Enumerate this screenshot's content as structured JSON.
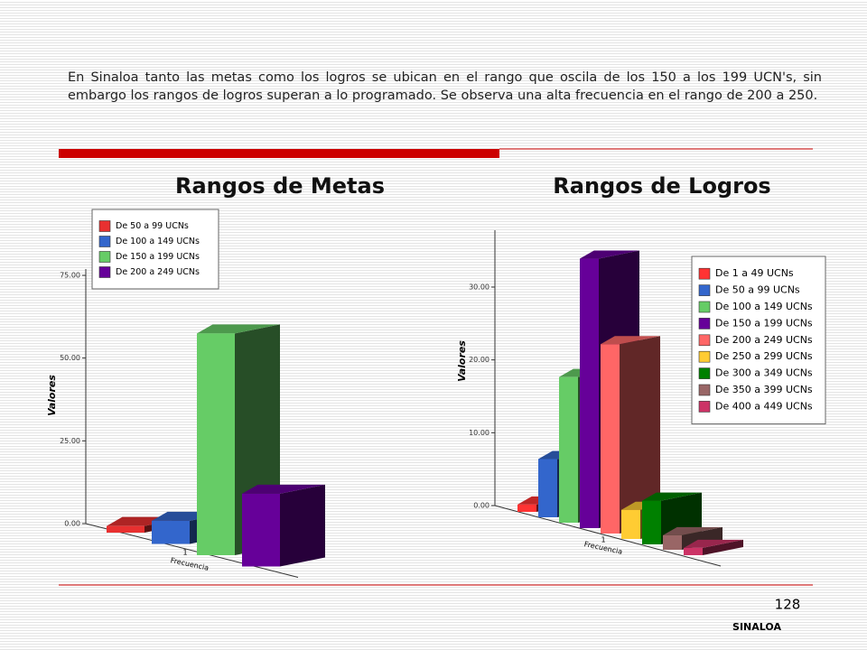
{
  "text": "En Sinaloa tanto las metas como los logros se ubican en el rango que oscila de los 150 a los 199 UCN's, sin embargo los rangos de logros superan a lo programado. Se observa una alta frecuencia en el rango de 200 a 250.",
  "page_number": "128",
  "footer": "SINALOA",
  "chart_data": [
    {
      "type": "bar",
      "title": "Rangos de Metas",
      "ylabel": "Valores",
      "xlabel": "Frecuencia",
      "categories": [
        "1"
      ],
      "ylim": [
        0,
        80
      ],
      "yticks": [
        {
          "value": 0,
          "label": "0.00"
        },
        {
          "value": 25,
          "label": "25.00"
        },
        {
          "value": 50,
          "label": "50.00"
        },
        {
          "value": 75,
          "label": "75.00"
        }
      ],
      "series": [
        {
          "name": "De 50 a 99 UCNs",
          "color": "#e83030",
          "values": [
            2
          ]
        },
        {
          "name": "De 100 a 149 UCNs",
          "color": "#3366cc",
          "values": [
            7
          ]
        },
        {
          "name": "De 150 a 199 UCNs",
          "color": "#66cc66",
          "values": [
            67
          ]
        },
        {
          "name": "De 200 a 249 UCNs",
          "color": "#660099",
          "values": [
            22
          ]
        }
      ]
    },
    {
      "type": "bar",
      "title": "Rangos de Logros",
      "ylabel": "Valores",
      "xlabel": "Frecuencia",
      "categories": [
        "1"
      ],
      "ylim": [
        0,
        38
      ],
      "yticks": [
        {
          "value": 0,
          "label": "0.00"
        },
        {
          "value": 10,
          "label": "10.00"
        },
        {
          "value": 20,
          "label": "20.00"
        },
        {
          "value": 30,
          "label": "30.00"
        }
      ],
      "series": [
        {
          "name": "De 1 a 49 UCNs",
          "color": "#ff3333",
          "values": [
            1
          ]
        },
        {
          "name": "De 50 a 99 UCNs",
          "color": "#3366cc",
          "values": [
            8
          ]
        },
        {
          "name": "De 100 a 149 UCNs",
          "color": "#66cc66",
          "values": [
            20
          ]
        },
        {
          "name": "De 150 a 199 UCNs",
          "color": "#660099",
          "values": [
            37
          ]
        },
        {
          "name": "De 200 a 249 UCNs",
          "color": "#ff6666",
          "values": [
            26
          ]
        },
        {
          "name": "De 250 a 299 UCNs",
          "color": "#ffcc33",
          "values": [
            4
          ]
        },
        {
          "name": "De 300 a 349 UCNs",
          "color": "#008000",
          "values": [
            6
          ]
        },
        {
          "name": "De 350 a 399 UCNs",
          "color": "#996666",
          "values": [
            2
          ]
        },
        {
          "name": "De 400 a 449 UCNs",
          "color": "#cc3366",
          "values": [
            1
          ]
        }
      ]
    }
  ]
}
